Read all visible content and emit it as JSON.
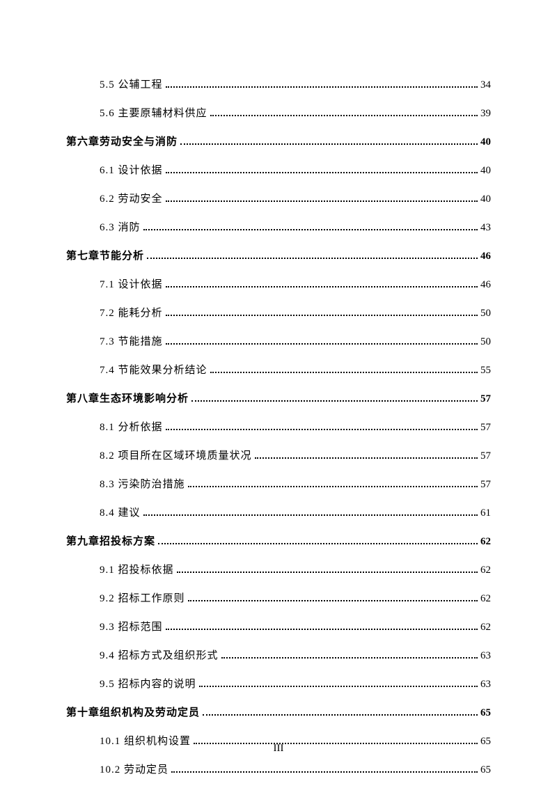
{
  "toc": {
    "entries": [
      {
        "type": "section",
        "label": "5.5 公辅工程",
        "page": "34"
      },
      {
        "type": "section",
        "label": "5.6 主要原辅材料供应",
        "page": "39"
      },
      {
        "type": "chapter",
        "label": "第六章劳动安全与消防",
        "page": "40"
      },
      {
        "type": "section",
        "label": "6.1 设计依据",
        "page": "40"
      },
      {
        "type": "section",
        "label": "6.2 劳动安全",
        "page": "40"
      },
      {
        "type": "section",
        "label": "6.3 消防",
        "page": "43"
      },
      {
        "type": "chapter",
        "label": "第七章节能分析",
        "page": "46"
      },
      {
        "type": "section",
        "label": "7.1 设计依据",
        "page": "46"
      },
      {
        "type": "section",
        "label": "7.2 能耗分析",
        "page": "50"
      },
      {
        "type": "section",
        "label": "7.3 节能措施",
        "page": "50"
      },
      {
        "type": "section",
        "label": "7.4 节能效果分析结论",
        "page": "55"
      },
      {
        "type": "chapter",
        "label": "第八章生态环境影响分析",
        "page": "57"
      },
      {
        "type": "section",
        "label": "8.1 分析依据",
        "page": "57"
      },
      {
        "type": "section",
        "label": "8.2 项目所在区域环境质量状况",
        "page": "57"
      },
      {
        "type": "section",
        "label": "8.3 污染防治措施",
        "page": "57"
      },
      {
        "type": "section",
        "label": "8.4 建议",
        "page": "61"
      },
      {
        "type": "chapter",
        "label": "第九章招投标方案",
        "page": "62"
      },
      {
        "type": "section",
        "label": "9.1 招投标依据",
        "page": "62"
      },
      {
        "type": "section",
        "label": "9.2 招标工作原则",
        "page": "62"
      },
      {
        "type": "section",
        "label": "9.3 招标范围",
        "page": "62"
      },
      {
        "type": "section",
        "label": "9.4 招标方式及组织形式",
        "page": "63"
      },
      {
        "type": "section",
        "label": "9.5 招标内容的说明",
        "page": "63"
      },
      {
        "type": "chapter",
        "label": "第十章组织机构及劳动定员",
        "page": "65"
      },
      {
        "type": "section",
        "label": "10.1 组织机构设置",
        "page": "65"
      },
      {
        "type": "section",
        "label": "10.2 劳动定员",
        "page": "65"
      }
    ]
  },
  "pageNumber": "III"
}
